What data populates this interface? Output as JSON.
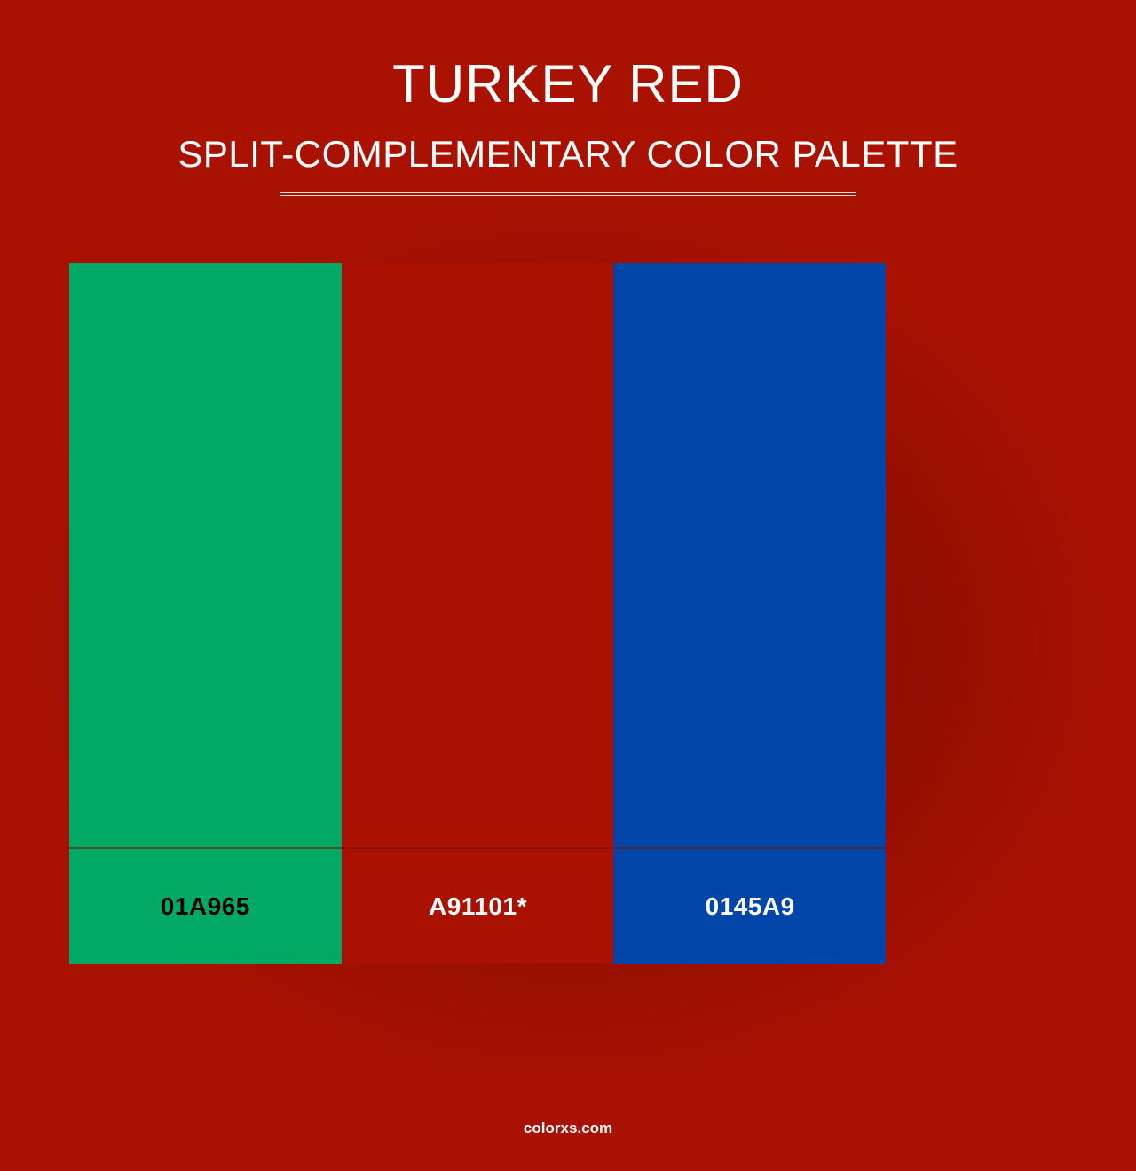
{
  "header": {
    "title": "TURKEY RED",
    "subtitle": "SPLIT-COMPLEMENTARY COLOR PALETTE",
    "title_color": "#ffffff",
    "subtitle_color": "#ffffff",
    "title_fontsize": 60,
    "subtitle_fontsize": 42,
    "divider_color": "#ffffff",
    "divider_width": 650
  },
  "background": {
    "color": "#a91101",
    "vignette_color": "rgba(0,0,0,0.28)"
  },
  "palette": {
    "type": "color-palette",
    "layout": "horizontal",
    "swatch_height": 660,
    "label_height": 130,
    "label_fontsize": 28,
    "label_fontweight": 700,
    "swatches": [
      {
        "hex": "#01A965",
        "label": "01A965",
        "label_text_color": "#000000"
      },
      {
        "hex": "#A91101",
        "label": "A91101*",
        "label_text_color": "#ffffff"
      },
      {
        "hex": "#0145A9",
        "label": "0145A9",
        "label_text_color": "#ffffff"
      }
    ]
  },
  "footer": {
    "text": "colorxs.com",
    "color": "#ffffff",
    "fontsize": 17
  }
}
